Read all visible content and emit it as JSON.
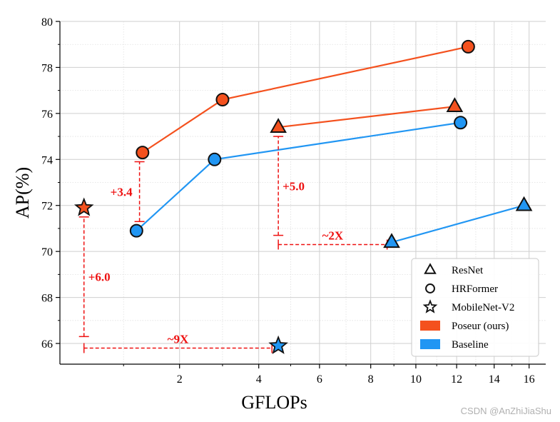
{
  "chart_data": {
    "type": "line",
    "xlabel": "GFLOPs",
    "ylabel": "AP(%)",
    "ylim": [
      65.1,
      80
    ],
    "y_ticks": [
      66,
      68,
      70,
      72,
      74,
      76,
      78,
      80
    ],
    "x_ticks": [
      2,
      4,
      6,
      8,
      10,
      12,
      14,
      16
    ],
    "x_scale": "sqrt",
    "xlim": [
      0.28,
      17
    ],
    "grid": true,
    "legend_position": "bottom-right",
    "series": [
      {
        "name": "Poseur ResNet",
        "group": "Poseur (ours)",
        "marker": "triangle",
        "color": "#f4511e",
        "points": [
          {
            "x": 4.6,
            "y": 75.4
          },
          {
            "x": 11.9,
            "y": 76.3
          }
        ]
      },
      {
        "name": "Poseur HRFormer",
        "group": "Poseur (ours)",
        "marker": "circle",
        "color": "#f4511e",
        "points": [
          {
            "x": 1.3,
            "y": 74.3
          },
          {
            "x": 3.0,
            "y": 76.6
          },
          {
            "x": 12.6,
            "y": 78.9
          }
        ]
      },
      {
        "name": "Poseur MobileNet-V2",
        "group": "Poseur (ours)",
        "marker": "star",
        "color": "#f4511e",
        "points": [
          {
            "x": 0.5,
            "y": 71.9
          }
        ]
      },
      {
        "name": "Baseline ResNet",
        "group": "Baseline",
        "marker": "triangle",
        "color": "#2196f3",
        "points": [
          {
            "x": 8.9,
            "y": 70.4
          },
          {
            "x": 15.7,
            "y": 72.0
          }
        ]
      },
      {
        "name": "Baseline HRFormer",
        "group": "Baseline",
        "marker": "circle",
        "color": "#2196f3",
        "points": [
          {
            "x": 1.2,
            "y": 70.9
          },
          {
            "x": 2.8,
            "y": 74.0
          },
          {
            "x": 12.2,
            "y": 75.6
          }
        ]
      },
      {
        "name": "Baseline MobileNet-V2",
        "group": "Baseline",
        "marker": "star",
        "color": "#2196f3",
        "points": [
          {
            "x": 4.6,
            "y": 65.9
          }
        ]
      }
    ],
    "annotations": [
      {
        "label": "+3.4",
        "kind": "vertical",
        "x": 1.25,
        "y_from": 71.3,
        "y_to": 73.9
      },
      {
        "label": "+5.0",
        "kind": "vertical",
        "x": 4.6,
        "y_from": 70.7,
        "y_to": 75.0
      },
      {
        "label": "+6.0",
        "kind": "vertical",
        "x": 0.5,
        "y_from": 66.3,
        "y_to": 71.5
      },
      {
        "label": "~2X",
        "kind": "horizontal",
        "y": 70.3,
        "x_from": 4.6,
        "x_to": 8.7
      },
      {
        "label": "~9X",
        "kind": "horizontal",
        "y": 65.8,
        "x_from": 0.5,
        "x_to": 4.4
      }
    ],
    "legend": [
      {
        "label": "ResNet",
        "marker": "triangle"
      },
      {
        "label": "HRFormer",
        "marker": "circle"
      },
      {
        "label": "MobileNet-V2",
        "marker": "star"
      },
      {
        "label": "Poseur (ours)",
        "swatch": "#f4511e"
      },
      {
        "label": "Baseline",
        "swatch": "#2196f3"
      }
    ]
  },
  "watermark": "CSDN @AnZhiJiaShu"
}
